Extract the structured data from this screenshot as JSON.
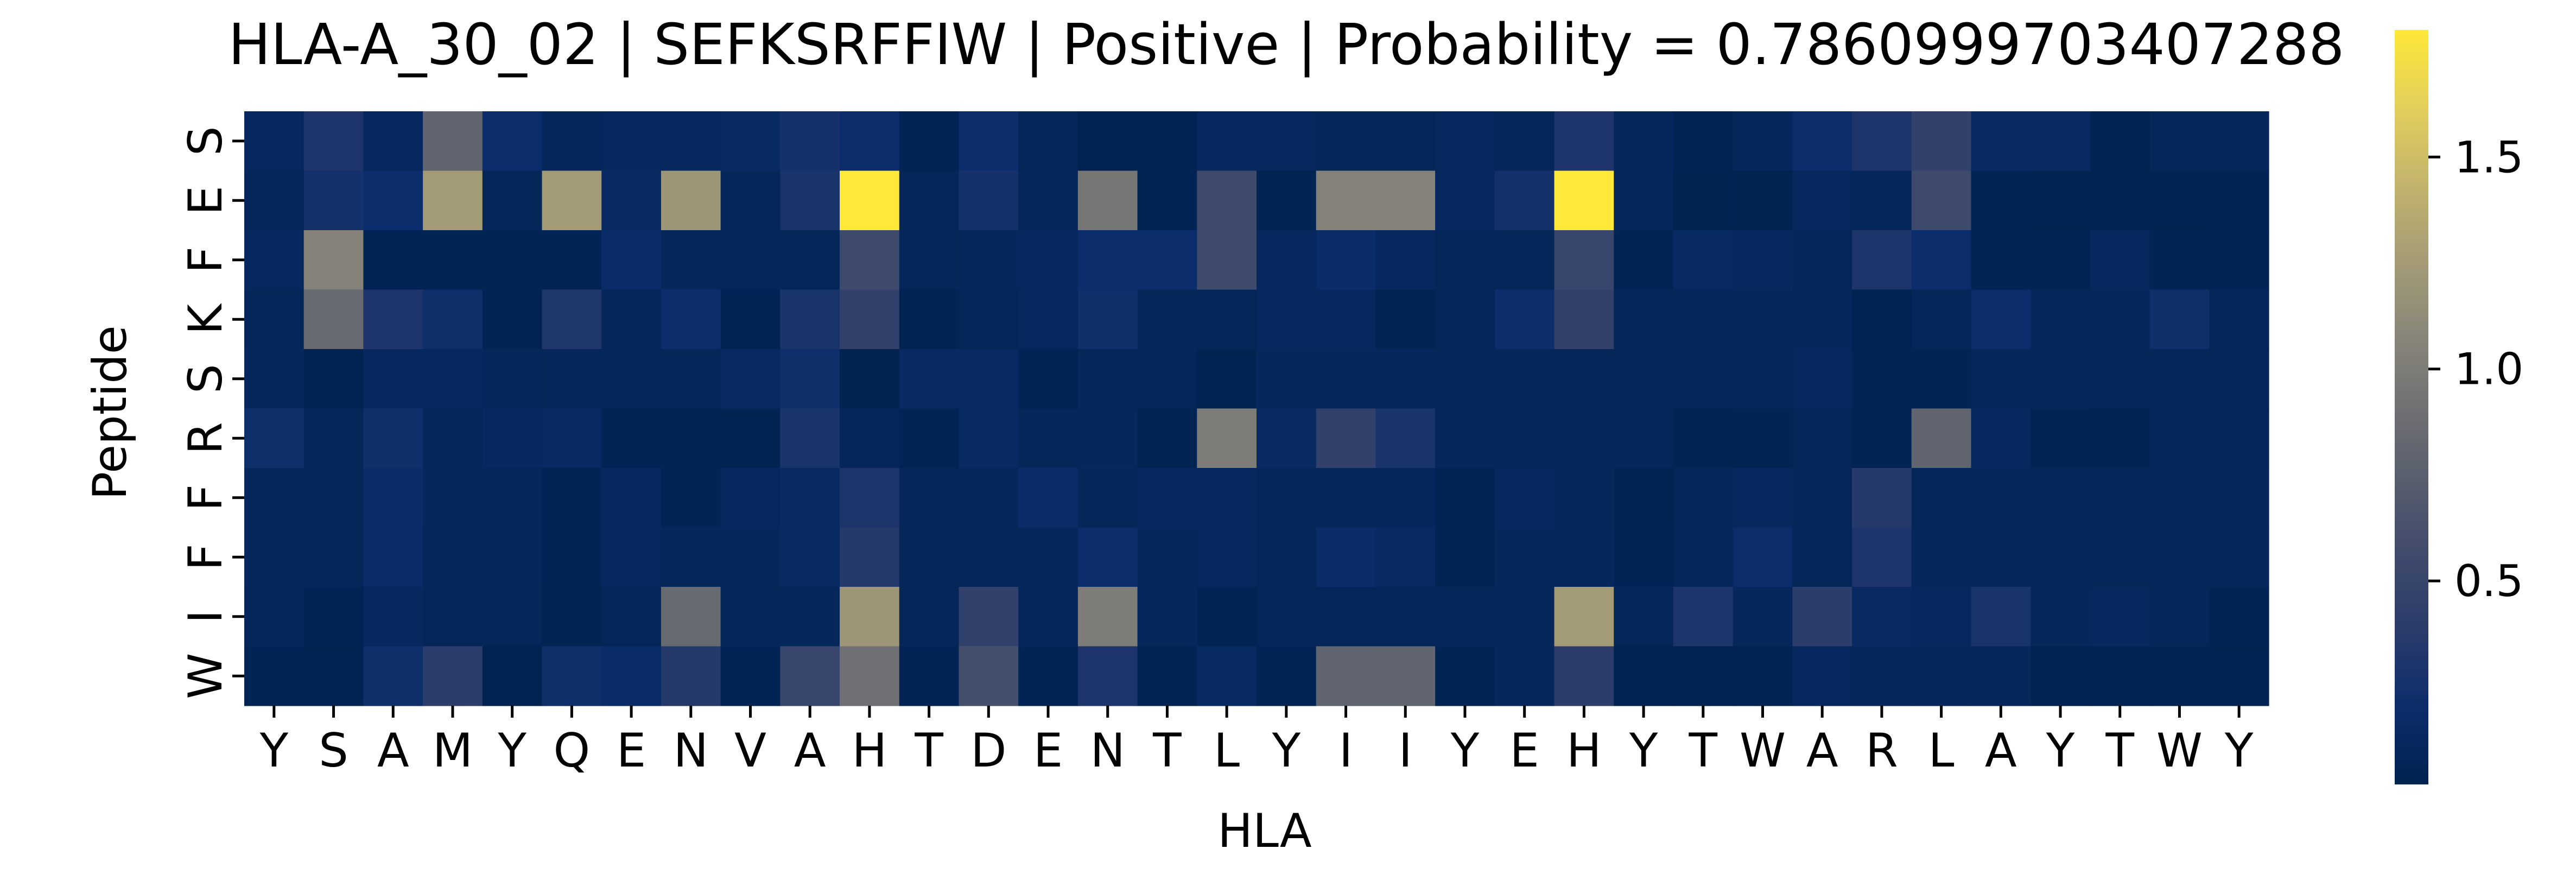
{
  "chart_data": {
    "type": "heatmap",
    "title": "HLA-A_30_02 | SEFKSRFFIW | Positive | Probability = 0.7860999703407288",
    "xlabel": "HLA",
    "ylabel": "Peptide",
    "x_categories": [
      "Y",
      "S",
      "A",
      "M",
      "Y",
      "Q",
      "E",
      "N",
      "V",
      "A",
      "H",
      "T",
      "D",
      "E",
      "N",
      "T",
      "L",
      "Y",
      "I",
      "I",
      "Y",
      "E",
      "H",
      "Y",
      "T",
      "W",
      "A",
      "R",
      "L",
      "A",
      "Y",
      "T",
      "W",
      "Y"
    ],
    "y_categories": [
      "S",
      "E",
      "F",
      "K",
      "S",
      "R",
      "F",
      "F",
      "I",
      "W"
    ],
    "colormap": "cividis",
    "colorbar": {
      "vmin": 0.02,
      "vmax": 1.8,
      "ticks": [
        0.5,
        1.0,
        1.5
      ],
      "tick_labels": [
        "0.5",
        "1.0",
        "1.5"
      ]
    },
    "values": [
      [
        0.12,
        0.3,
        0.12,
        0.8,
        0.2,
        0.1,
        0.12,
        0.12,
        0.15,
        0.25,
        0.2,
        0.06,
        0.2,
        0.08,
        0.04,
        0.06,
        0.12,
        0.12,
        0.08,
        0.08,
        0.12,
        0.08,
        0.3,
        0.1,
        0.05,
        0.1,
        0.2,
        0.3,
        0.45,
        0.15,
        0.15,
        0.05,
        0.08,
        0.1
      ],
      [
        0.08,
        0.25,
        0.2,
        1.25,
        0.08,
        1.25,
        0.15,
        1.2,
        0.08,
        0.28,
        1.8,
        0.08,
        0.25,
        0.1,
        0.95,
        0.05,
        0.55,
        0.05,
        1.05,
        1.05,
        0.12,
        0.25,
        1.8,
        0.1,
        0.03,
        0.03,
        0.12,
        0.1,
        0.55,
        0.06,
        0.05,
        0.04,
        0.04,
        0.06
      ],
      [
        0.12,
        1.05,
        0.06,
        0.05,
        0.06,
        0.06,
        0.18,
        0.1,
        0.08,
        0.08,
        0.55,
        0.08,
        0.1,
        0.12,
        0.2,
        0.2,
        0.55,
        0.12,
        0.18,
        0.12,
        0.08,
        0.08,
        0.5,
        0.06,
        0.15,
        0.12,
        0.08,
        0.3,
        0.2,
        0.06,
        0.06,
        0.12,
        0.06,
        0.06
      ],
      [
        0.08,
        0.85,
        0.3,
        0.22,
        0.06,
        0.32,
        0.1,
        0.2,
        0.06,
        0.28,
        0.45,
        0.05,
        0.08,
        0.12,
        0.22,
        0.08,
        0.08,
        0.12,
        0.12,
        0.05,
        0.08,
        0.2,
        0.45,
        0.08,
        0.08,
        0.1,
        0.1,
        0.04,
        0.08,
        0.2,
        0.1,
        0.1,
        0.22,
        0.08
      ],
      [
        0.1,
        0.04,
        0.12,
        0.12,
        0.1,
        0.08,
        0.08,
        0.08,
        0.15,
        0.22,
        0.03,
        0.15,
        0.15,
        0.06,
        0.08,
        0.08,
        0.05,
        0.1,
        0.1,
        0.1,
        0.1,
        0.1,
        0.08,
        0.08,
        0.08,
        0.1,
        0.12,
        0.06,
        0.06,
        0.1,
        0.1,
        0.08,
        0.08,
        0.08
      ],
      [
        0.22,
        0.08,
        0.22,
        0.1,
        0.14,
        0.15,
        0.06,
        0.05,
        0.05,
        0.28,
        0.08,
        0.06,
        0.15,
        0.08,
        0.1,
        0.05,
        1.0,
        0.15,
        0.45,
        0.28,
        0.08,
        0.08,
        0.08,
        0.08,
        0.05,
        0.05,
        0.08,
        0.06,
        0.8,
        0.12,
        0.06,
        0.06,
        0.08,
        0.08
      ],
      [
        0.1,
        0.08,
        0.18,
        0.1,
        0.08,
        0.06,
        0.12,
        0.06,
        0.12,
        0.15,
        0.3,
        0.08,
        0.08,
        0.18,
        0.08,
        0.12,
        0.12,
        0.08,
        0.1,
        0.1,
        0.05,
        0.12,
        0.1,
        0.05,
        0.08,
        0.12,
        0.08,
        0.35,
        0.08,
        0.1,
        0.1,
        0.08,
        0.1,
        0.1
      ],
      [
        0.1,
        0.08,
        0.18,
        0.08,
        0.08,
        0.06,
        0.12,
        0.1,
        0.1,
        0.15,
        0.35,
        0.08,
        0.08,
        0.1,
        0.2,
        0.1,
        0.12,
        0.08,
        0.18,
        0.15,
        0.05,
        0.1,
        0.1,
        0.06,
        0.08,
        0.2,
        0.08,
        0.3,
        0.1,
        0.1,
        0.1,
        0.08,
        0.1,
        0.1
      ],
      [
        0.08,
        0.06,
        0.12,
        0.08,
        0.08,
        0.05,
        0.08,
        0.85,
        0.08,
        0.1,
        1.2,
        0.08,
        0.45,
        0.1,
        1.0,
        0.1,
        0.06,
        0.08,
        0.08,
        0.1,
        0.1,
        0.1,
        1.25,
        0.08,
        0.3,
        0.1,
        0.4,
        0.15,
        0.12,
        0.28,
        0.1,
        0.12,
        0.08,
        0.06
      ],
      [
        0.06,
        0.05,
        0.22,
        0.4,
        0.04,
        0.22,
        0.18,
        0.35,
        0.06,
        0.5,
        0.9,
        0.06,
        0.6,
        0.06,
        0.3,
        0.05,
        0.15,
        0.06,
        0.8,
        0.8,
        0.06,
        0.1,
        0.4,
        0.04,
        0.04,
        0.05,
        0.12,
        0.1,
        0.1,
        0.1,
        0.04,
        0.04,
        0.05,
        0.05
      ]
    ]
  }
}
